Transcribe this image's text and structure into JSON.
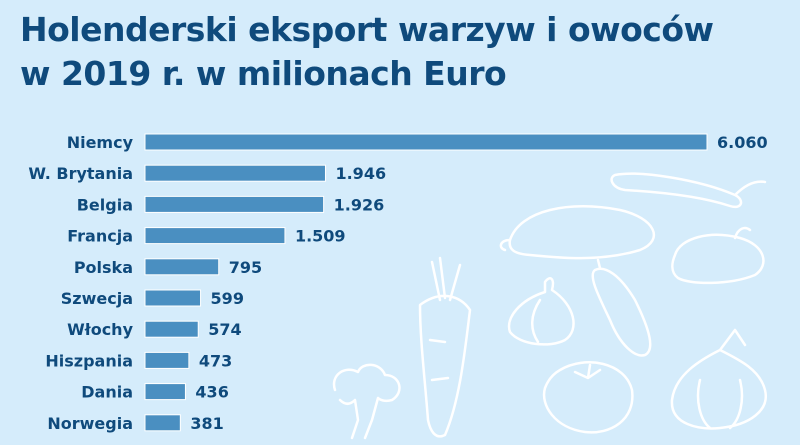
{
  "chart_data": {
    "type": "bar",
    "orientation": "horizontal",
    "title_lines": [
      "Holenderski eksport warzyw i owoców",
      "w 2019 r. w milionach Euro"
    ],
    "categories": [
      "Niemcy",
      "W. Brytania",
      "Belgia",
      "Francja",
      "Polska",
      "Szwecja",
      "Włochy",
      "Hiszpania",
      "Dania",
      "Norwegia"
    ],
    "values": [
      6060,
      1946,
      1926,
      1509,
      795,
      599,
      574,
      473,
      436,
      381
    ],
    "value_labels": [
      "6.060",
      "1.946",
      "1.926",
      "1.509",
      "795",
      "599",
      "574",
      "473",
      "436",
      "381"
    ],
    "xlim": [
      0,
      6060
    ],
    "grid": false,
    "colors": {
      "bar": "#4a8fc1",
      "background": "#d5ecfb",
      "text": "#0f4a7c",
      "decoration": "#ffffff"
    }
  }
}
